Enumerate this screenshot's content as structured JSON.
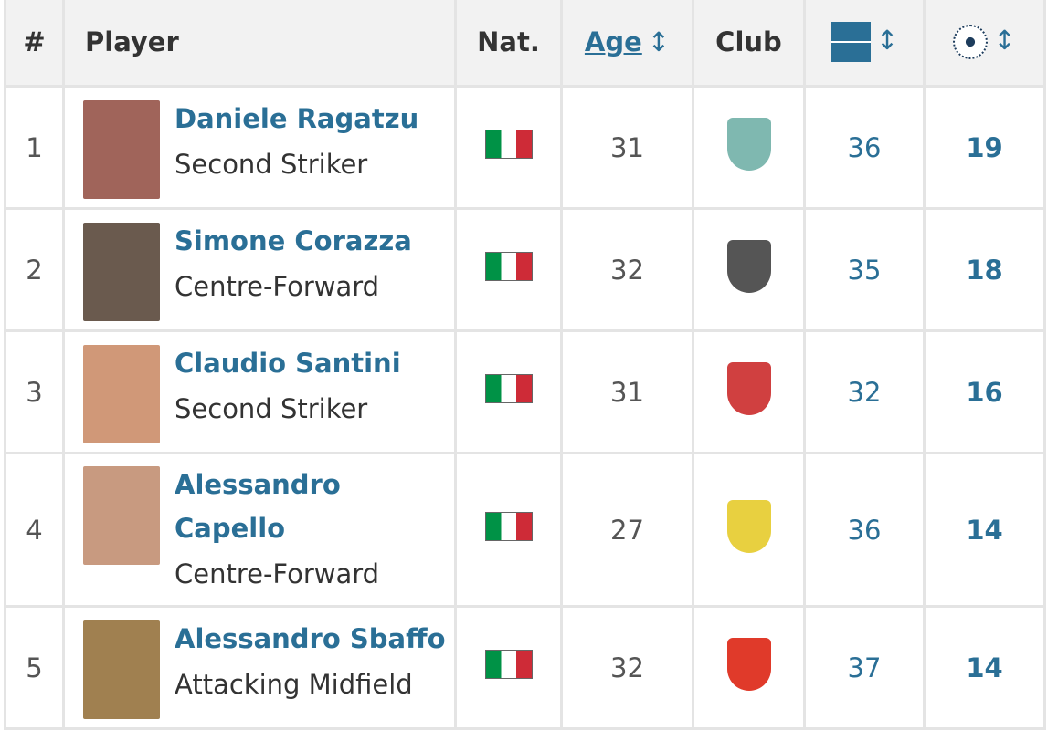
{
  "header": {
    "rank": "#",
    "player": "Player",
    "nat": "Nat.",
    "age": "Age",
    "club": "Club",
    "appearances_icon": "pitch-icon",
    "goals_icon": "ball-icon",
    "sort_icon": "↕"
  },
  "colors": {
    "link": "#2a6f96",
    "header_bg": "#f2f2f2",
    "border": "#e4e4e4"
  },
  "rows": [
    {
      "rank": "1",
      "name": "Daniele Ragatzu",
      "position": "Second Striker",
      "nat": "Italy",
      "age": "31",
      "apps": "36",
      "goals": "19",
      "photo": "#a0645a",
      "crest": "#7fb8b0"
    },
    {
      "rank": "2",
      "name": "Simone Corazza",
      "position": "Centre-Forward",
      "nat": "Italy",
      "age": "32",
      "apps": "35",
      "goals": "18",
      "photo": "#6a5a4e",
      "crest": "#555555"
    },
    {
      "rank": "3",
      "name": "Claudio Santini",
      "position": "Second Striker",
      "nat": "Italy",
      "age": "31",
      "apps": "32",
      "goals": "16",
      "photo": "#d09878",
      "crest": "#d04040"
    },
    {
      "rank": "4",
      "name": "Alessandro Capello",
      "position": "Centre-Forward",
      "nat": "Italy",
      "age": "27",
      "apps": "36",
      "goals": "14",
      "photo": "#c89a80",
      "crest": "#e8d040"
    },
    {
      "rank": "5",
      "name": "Alessandro Sbaffo",
      "position": "Attacking Midfield",
      "nat": "Italy",
      "age": "32",
      "apps": "37",
      "goals": "14",
      "photo": "#a08050",
      "crest": "#e03a2a"
    }
  ]
}
